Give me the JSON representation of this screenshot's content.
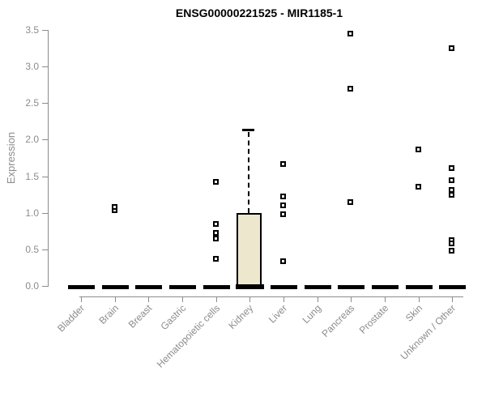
{
  "chart_data": {
    "type": "boxplot",
    "title": "ENSG00000221525 - MIR1185-1",
    "xlabel": "",
    "ylabel": "Expression",
    "ylim": [
      0,
      3.5
    ],
    "yticks": [
      0.0,
      0.5,
      1.0,
      1.5,
      2.0,
      2.5,
      3.0,
      3.5
    ],
    "ytick_labels": [
      "0.0",
      "0.5",
      "1.0",
      "1.5",
      "2.0",
      "2.5",
      "3.0",
      "3.5"
    ],
    "grid": false,
    "legend": false,
    "categories": [
      "Bladder",
      "Brain",
      "Breast",
      "Gastric",
      "Hematopoietic cells",
      "Kidney",
      "Liver",
      "Lung",
      "Pancreas",
      "Prostate",
      "Skin",
      "Unknown / Other"
    ],
    "series": [
      {
        "category": "Bladder",
        "median": 0,
        "points": []
      },
      {
        "category": "Brain",
        "median": 0,
        "points": [
          1.03,
          1.07
        ]
      },
      {
        "category": "Breast",
        "median": 0,
        "points": []
      },
      {
        "category": "Gastric",
        "median": 0,
        "points": []
      },
      {
        "category": "Hematopoietic cells",
        "median": 0,
        "points": [
          1.42,
          0.84,
          0.72,
          0.64,
          0.37
        ]
      },
      {
        "category": "Kidney",
        "median": 0,
        "box": {
          "q1": 0,
          "median": 0,
          "q3": 1.0,
          "whisker_low": 0,
          "whisker_high": 2.13
        },
        "points": []
      },
      {
        "category": "Liver",
        "median": 0,
        "points": [
          1.66,
          1.22,
          1.1,
          0.97,
          0.33
        ]
      },
      {
        "category": "Lung",
        "median": 0,
        "points": []
      },
      {
        "category": "Pancreas",
        "median": 0,
        "points": [
          3.44,
          2.69,
          1.14
        ]
      },
      {
        "category": "Prostate",
        "median": 0,
        "points": []
      },
      {
        "category": "Skin",
        "median": 0,
        "points": [
          1.86,
          1.35
        ]
      },
      {
        "category": "Unknown / Other",
        "median": 0,
        "points": [
          3.24,
          1.61,
          1.44,
          1.31,
          1.24,
          0.62,
          0.58,
          0.48
        ]
      }
    ],
    "colors": {
      "box_fill": "#ede8cd",
      "box_border": "#000000",
      "marker": "#000000",
      "zero_line": "#000000",
      "axis": "#8c8c8c",
      "tick_label": "#8c8c8c",
      "title": "#000000"
    }
  }
}
